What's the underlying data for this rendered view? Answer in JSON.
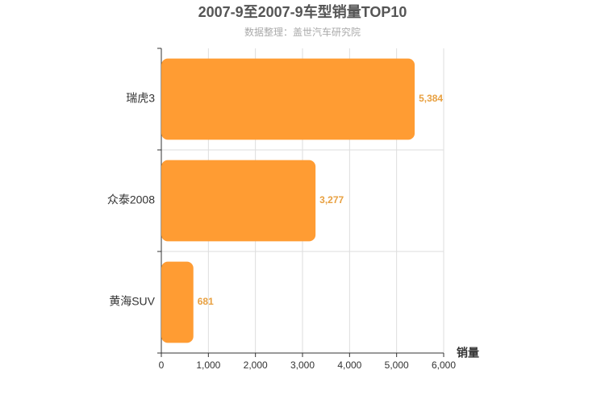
{
  "chart_data": {
    "type": "hbar",
    "title": "2007-9至2007-9车型销量TOP10",
    "subtitle": "数据整理：盖世汽车研究院",
    "x_label": "销量",
    "categories": [
      "瑞虎3",
      "众泰2008",
      "黄海SUV"
    ],
    "values": [
      5384,
      3277,
      681
    ],
    "value_labels": [
      "5,384",
      "3,277",
      "681"
    ],
    "color": "#ff9c33",
    "xlim": [
      0,
      6000
    ],
    "xticks": [
      0,
      {
        "value": 1000,
        "label": "1,000"
      },
      {
        "value": 2000,
        "label": "2,000"
      },
      {
        "value": 3000,
        "label": "3,000"
      },
      {
        "value": 4000,
        "label": "4,000"
      },
      {
        "value": 5000,
        "label": "5,000"
      },
      {
        "value": 6000,
        "label": "6,000"
      }
    ],
    "grid": true
  }
}
